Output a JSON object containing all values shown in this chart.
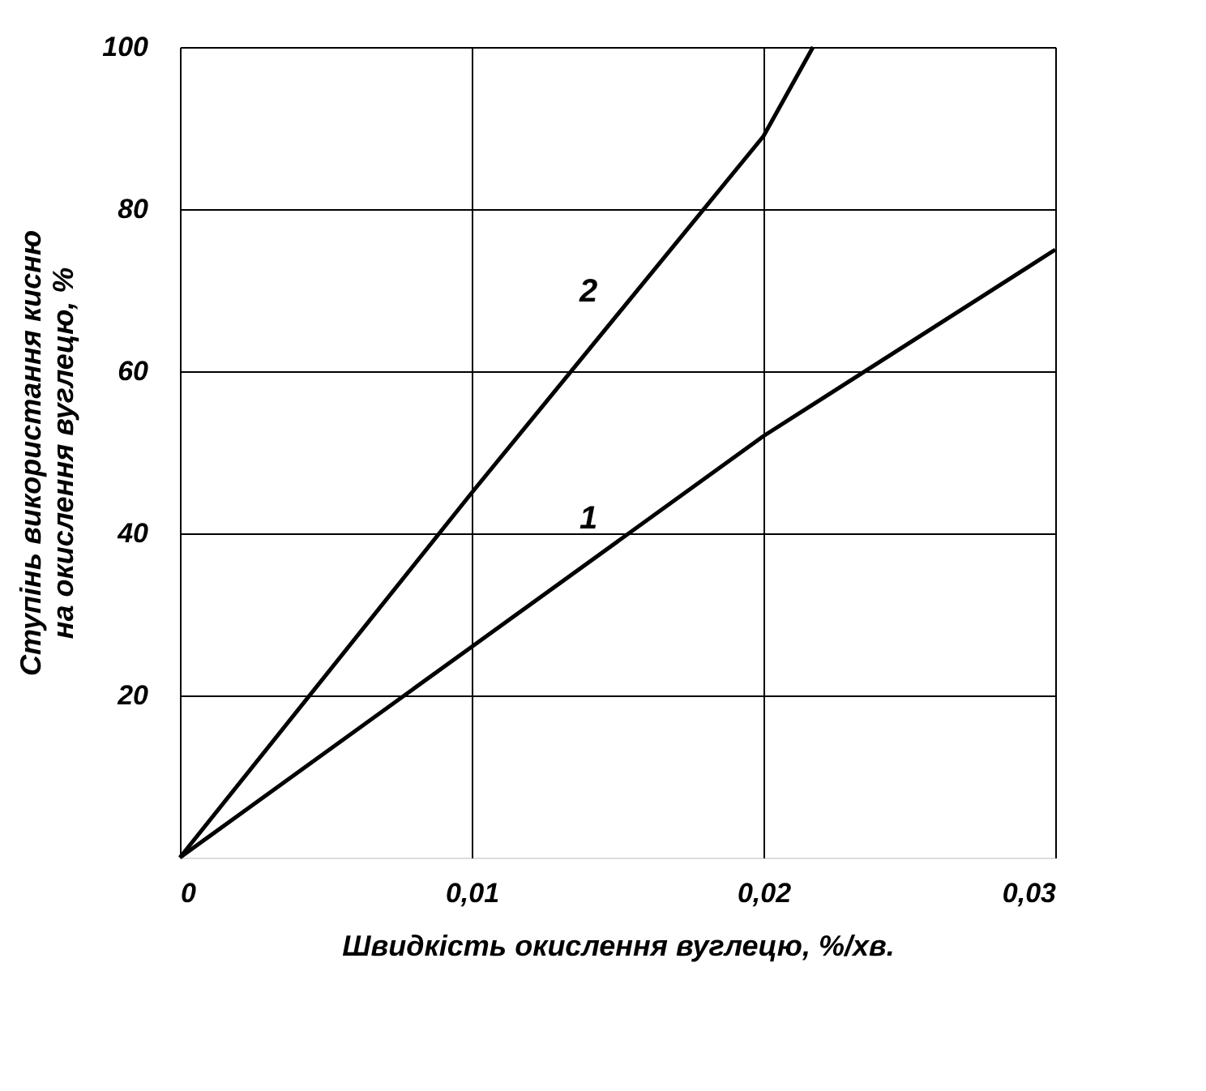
{
  "chart_data": {
    "type": "line",
    "xlabel": "Швидкість окислення вуглецю, %/хв.",
    "ylabel": "Ступінь використання кисню\nна окислення вуглецю, %",
    "xlim": [
      0,
      0.03
    ],
    "xticks": [
      {
        "value": 0,
        "label": "0"
      },
      {
        "value": 0.01,
        "label": "0,01"
      },
      {
        "value": 0.02,
        "label": "0,02"
      },
      {
        "value": 0.03,
        "label": "0,03"
      }
    ],
    "ylim": [
      0,
      100
    ],
    "yticks": [
      20,
      40,
      60,
      80,
      100
    ],
    "grid": true,
    "legend": false,
    "marker": "none",
    "line_style": "solid",
    "series": [
      {
        "name": "1",
        "color": "#000000",
        "x": [
          0,
          0.01,
          0.02,
          0.03
        ],
        "values": [
          0,
          26,
          52,
          75
        ]
      },
      {
        "name": "2",
        "color": "#000000",
        "x": [
          0,
          0.01,
          0.02,
          0.0217
        ],
        "values": [
          0,
          45,
          89,
          100
        ]
      }
    ]
  }
}
